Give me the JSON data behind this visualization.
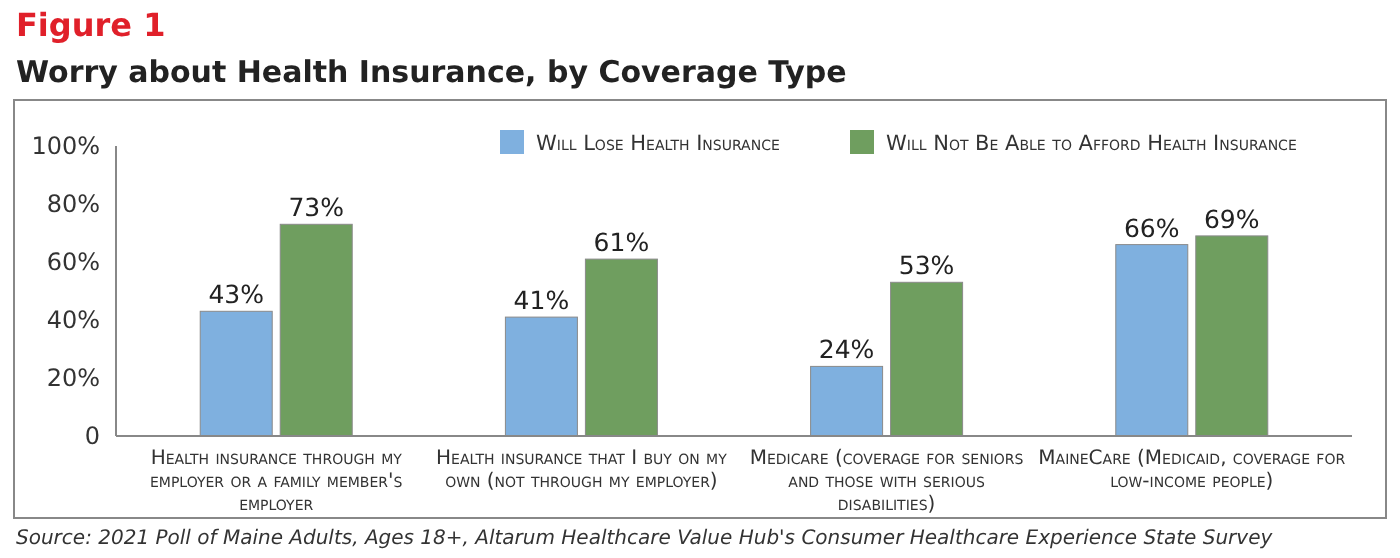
{
  "chart_data": {
    "type": "bar",
    "title": "Figure 1",
    "subtitle": "Worry about Health Insurance, by Coverage Type",
    "categories": [
      "Health insurance through my employer or a family member's employer",
      "Health insurance that I buy on my own (not through my employer)",
      "Medicare (coverage for seniors and those with serious disabilities)",
      "MaineCare (Medicaid, coverage for low-income people)"
    ],
    "series": [
      {
        "name": "Will Lose Health Insurance",
        "color": "#7fb0df",
        "values": [
          43,
          41,
          24,
          66
        ],
        "value_labels": [
          "43%",
          "41%",
          "24%",
          "66%"
        ]
      },
      {
        "name": "Will Not Be Able to Afford Health Insurance",
        "color": "#6f9e5f",
        "values": [
          73,
          61,
          53,
          69
        ],
        "value_labels": [
          "73%",
          "61%",
          "53%",
          "69%"
        ]
      }
    ],
    "ylim": [
      0,
      100
    ],
    "yticks": [
      {
        "value": 0,
        "label": "0"
      },
      {
        "value": 20,
        "label": "20%"
      },
      {
        "value": 40,
        "label": "40%"
      },
      {
        "value": 60,
        "label": "60%"
      },
      {
        "value": 80,
        "label": "80%"
      },
      {
        "value": 100,
        "label": "100%"
      }
    ],
    "grid": false,
    "legend": "top right",
    "annotations": [
      "Source: 2021 Poll of Maine Adults, Ages 18+, Altarum Healthcare Value Hub's Consumer Healthcare Experience State Survey"
    ]
  }
}
